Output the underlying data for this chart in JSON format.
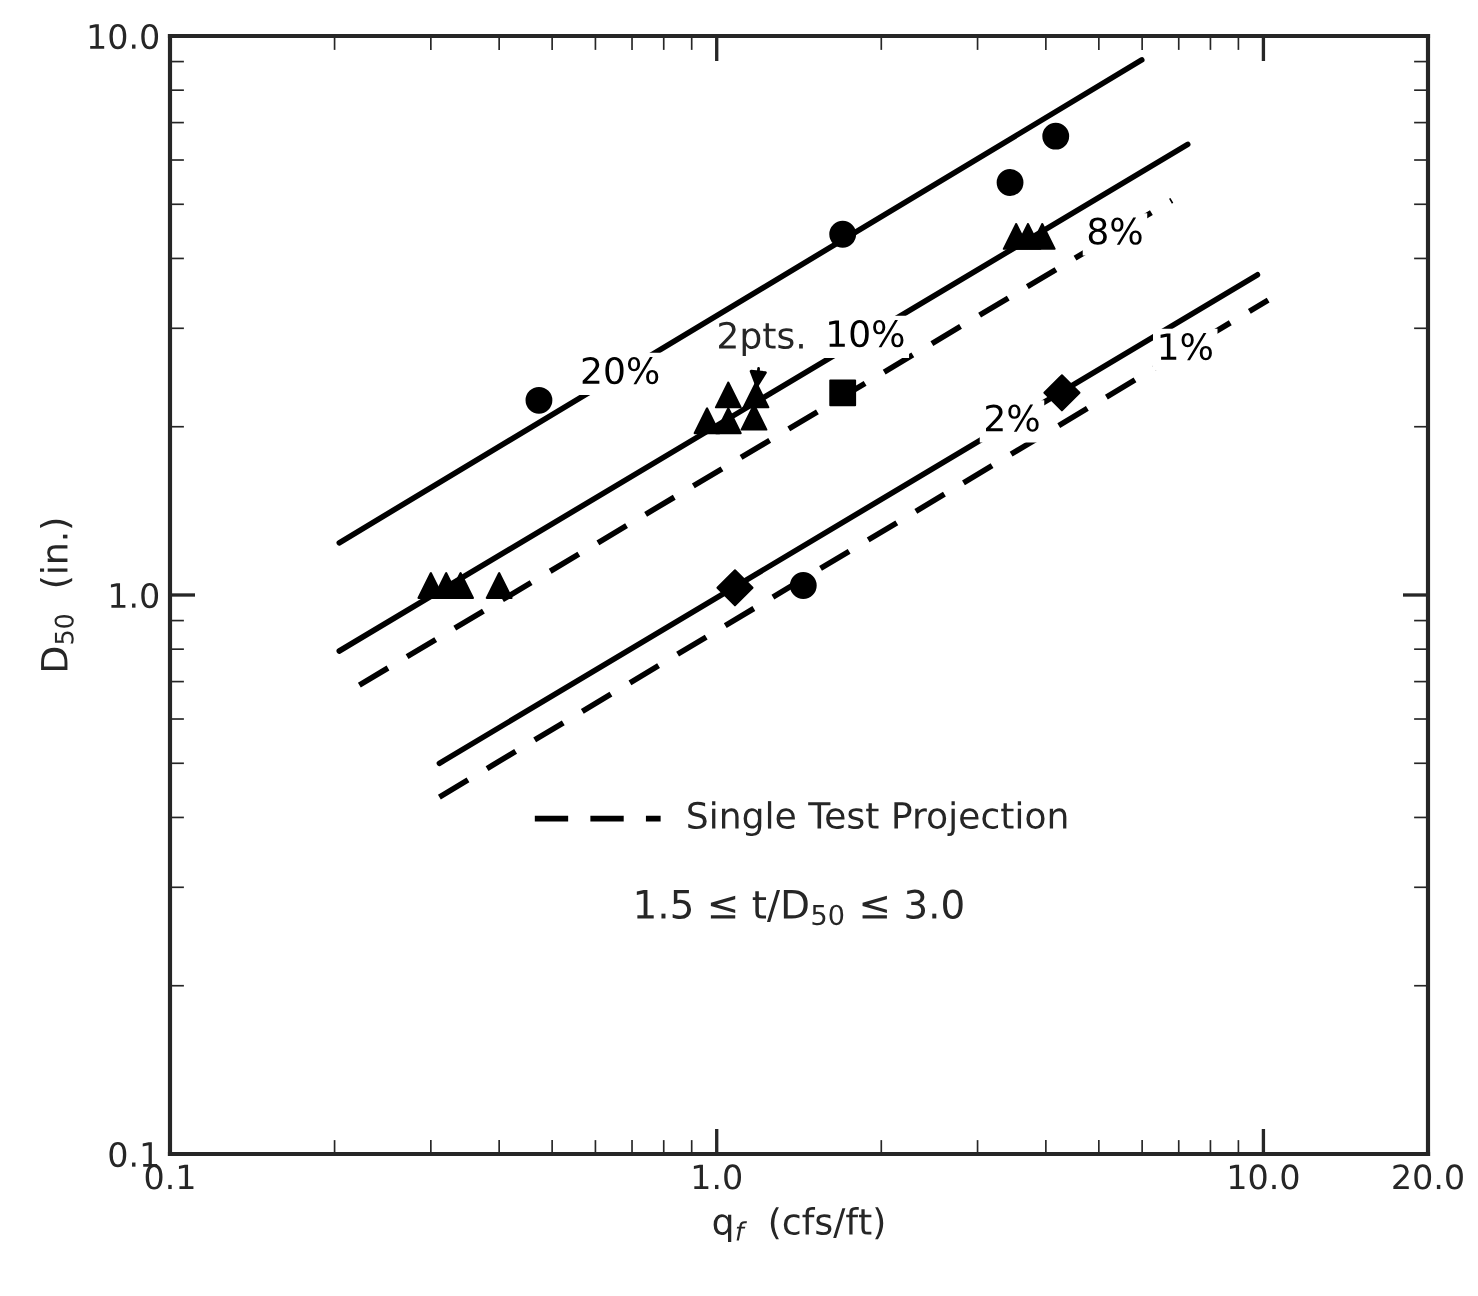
{
  "chart_data": {
    "type": "line",
    "xlabel": "q$_{f}$  (cfs/ft)",
    "ylabel": "D$_{50}$  (in.)",
    "log": "xy",
    "xlim": [
      0.1,
      20
    ],
    "ylim": [
      0.1,
      10
    ],
    "xticks": [
      {
        "value": 0.1,
        "label": "0.1"
      },
      {
        "value": 1,
        "label": "1.0"
      },
      {
        "value": 10,
        "label": "10.0"
      },
      {
        "value": 20,
        "label": "20.0"
      }
    ],
    "yticks": [
      {
        "value": 0.1,
        "label": "0.1"
      },
      {
        "value": 1,
        "label": "1.0"
      },
      {
        "value": 10,
        "label": "10.0"
      }
    ],
    "grid": false,
    "series": [
      {
        "name": "20%",
        "line_style": "solid",
        "color": "#000000",
        "x": [
          0.204,
          5.99
        ],
        "values": [
          1.24,
          9.06
        ]
      },
      {
        "name": "10%",
        "line_style": "solid",
        "color": "#000000",
        "x": [
          0.204,
          7.27
        ],
        "values": [
          0.794,
          6.4
        ]
      },
      {
        "name": "8%",
        "line_style": "dashed",
        "color": "#000000",
        "x": [
          0.222,
          6.8
        ],
        "values": [
          0.69,
          5.08
        ]
      },
      {
        "name": "2%",
        "line_style": "solid",
        "color": "#000000",
        "x": [
          0.311,
          9.75
        ],
        "values": [
          0.5,
          3.74
        ]
      },
      {
        "name": "1%",
        "line_style": "dashed",
        "color": "#000000",
        "x": [
          0.311,
          10.2
        ],
        "values": [
          0.435,
          3.37
        ]
      },
      {
        "type": "scatter",
        "marker": "circle",
        "color": "#000000",
        "x": [
          0.473,
          1.7,
          3.44,
          4.17,
          1.44
        ],
        "values": [
          2.23,
          4.42,
          5.47,
          6.62,
          1.04
        ]
      },
      {
        "type": "scatter",
        "marker": "triangle",
        "color": "#000000",
        "x": [
          0.96,
          1.05,
          1.05,
          1.17,
          1.18,
          0.3,
          0.32,
          0.34,
          0.4,
          3.53,
          3.71,
          3.94
        ],
        "values": [
          2.05,
          2.28,
          2.05,
          2.08,
          2.28,
          1.04,
          1.04,
          1.04,
          1.04,
          4.38,
          4.38,
          4.38
        ]
      },
      {
        "type": "scatter",
        "marker": "square",
        "color": "#000000",
        "x": [
          1.7
        ],
        "values": [
          2.3
        ]
      },
      {
        "type": "scatter",
        "marker": "diamond",
        "color": "#000000",
        "x": [
          4.28,
          1.08
        ],
        "values": [
          2.3,
          1.03
        ]
      }
    ],
    "annotations": [
      {
        "text": "2pts.",
        "x": 1.18,
        "y": 2.28
      },
      "Single Test Projection",
      "1.5 ≤ t/D$_{50}$ ≤ 3.0"
    ]
  }
}
